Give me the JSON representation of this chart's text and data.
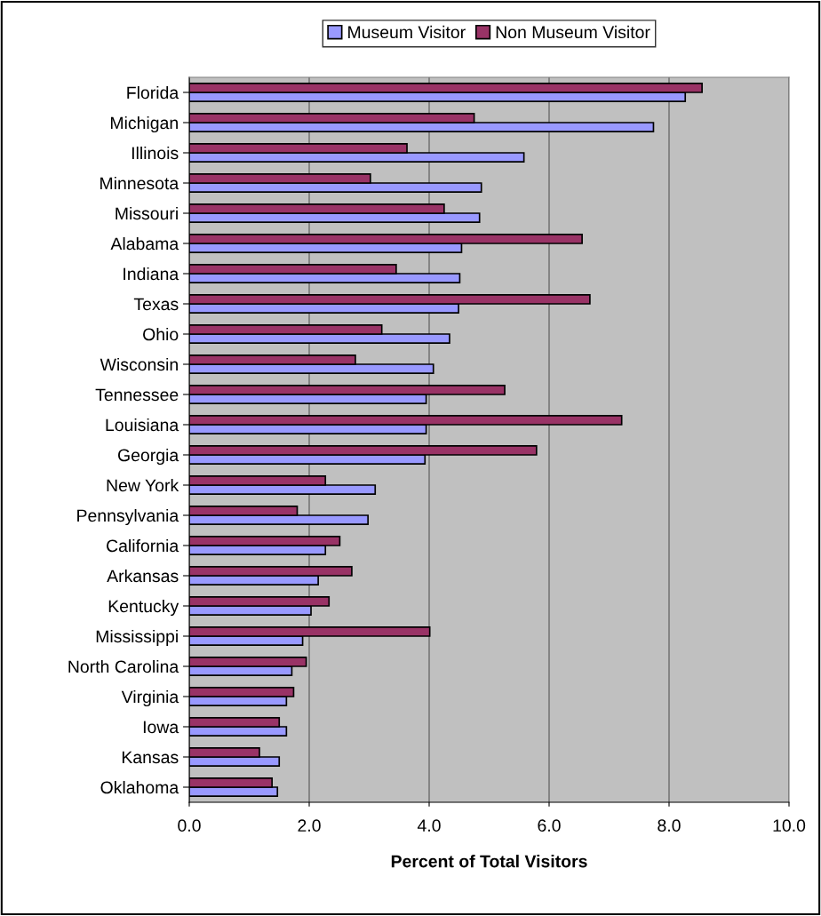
{
  "chart_data": {
    "type": "bar",
    "orientation": "horizontal",
    "categories": [
      "Florida",
      "Michigan",
      "Illinois",
      "Minnesota",
      "Missouri",
      "Alabama",
      "Indiana",
      "Texas",
      "Ohio",
      "Wisconsin",
      "Tennessee",
      "Louisiana",
      "Georgia",
      "New York",
      "Pennsylvania",
      "California",
      "Arkansas",
      "Kentucky",
      "Mississippi",
      "North Carolina",
      "Virginia",
      "Iowa",
      "Kansas",
      "Oklahoma"
    ],
    "series": [
      {
        "name": "Museum Visitor",
        "color": "#9999ff",
        "values": [
          8.27,
          7.74,
          5.58,
          4.87,
          4.84,
          4.54,
          4.51,
          4.49,
          4.34,
          4.07,
          3.95,
          3.95,
          3.93,
          3.1,
          2.98,
          2.27,
          2.15,
          2.03,
          1.89,
          1.71,
          1.62,
          1.62,
          1.5,
          1.47
        ]
      },
      {
        "name": "Non Museum Visitor",
        "color": "#993366",
        "values": [
          8.55,
          4.75,
          3.63,
          3.02,
          4.25,
          6.55,
          3.45,
          6.68,
          3.21,
          2.77,
          5.26,
          7.21,
          5.79,
          2.27,
          1.8,
          2.51,
          2.71,
          2.33,
          4.01,
          1.95,
          1.74,
          1.5,
          1.17,
          1.38
        ]
      }
    ],
    "xlabel": "Percent of Total Visitors",
    "xlim": [
      0,
      10
    ],
    "xticks": [
      {
        "value": 0,
        "label": "0.0"
      },
      {
        "value": 2,
        "label": "2.0"
      },
      {
        "value": 4,
        "label": "4.0"
      },
      {
        "value": 6,
        "label": "6.0"
      },
      {
        "value": 8,
        "label": "8.0"
      },
      {
        "value": 10,
        "label": "10.0"
      }
    ],
    "grid": "x",
    "legend": "top"
  }
}
